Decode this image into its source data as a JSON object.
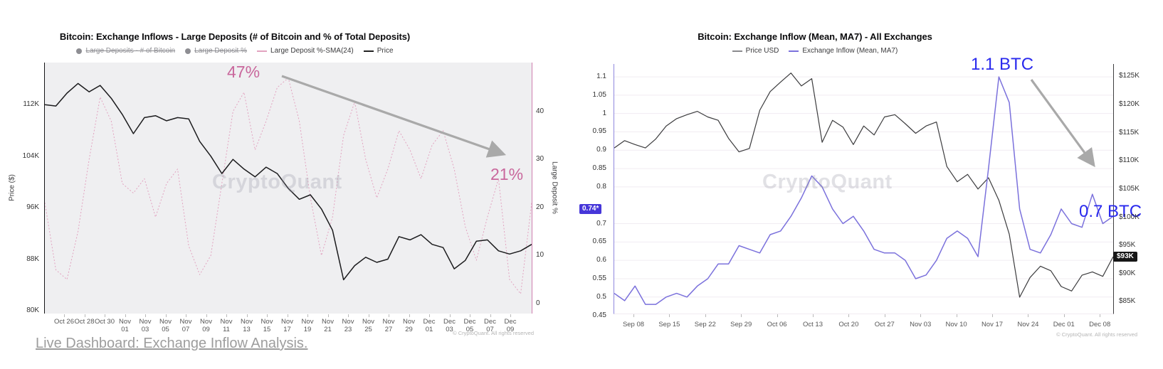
{
  "watermark": "CryptoQuant",
  "copyright": "© CryptoQuant. All rights reserved",
  "footer_link": "Live Dashboard: Exchange Inflow Analysis.",
  "chart_data": [
    {
      "type": "line",
      "title": "Bitcoin: Exchange Inflows - Large Deposits (# of Bitcoin and % of Total Deposits)",
      "legend": [
        {
          "label": "Large Deposits - # of Bitcoin",
          "marker": "dot",
          "color": "#8e8e93",
          "disabled": true
        },
        {
          "label": "Large Deposit %",
          "marker": "dot",
          "color": "#8e8e93",
          "disabled": true
        },
        {
          "label": "Large Deposit %-SMA(24)",
          "marker": "line",
          "color": "#e2a3c0",
          "disabled": false
        },
        {
          "label": "Price",
          "marker": "line",
          "color": "#222222",
          "disabled": false
        }
      ],
      "grid": false,
      "x_ticks": [
        "Oct 26",
        "Oct 28",
        "Oct 30",
        "Nov\n01",
        "Nov\n03",
        "Nov\n05",
        "Nov\n07",
        "Nov\n09",
        "Nov\n11",
        "Nov\n13",
        "Nov\n15",
        "Nov\n17",
        "Nov\n19",
        "Nov\n21",
        "Nov\n23",
        "Nov\n25",
        "Nov\n27",
        "Nov\n29",
        "Dec\n01",
        "Dec\n03",
        "Dec\n05",
        "Dec\n07",
        "Dec\n09"
      ],
      "axes": {
        "left": {
          "title": "Price ($)",
          "vmin": 79.55,
          "vmax": 118.55,
          "ticks": [
            {
              "v": 112,
              "label": "112K"
            },
            {
              "v": 104,
              "label": "104K"
            },
            {
              "v": 96,
              "label": "96K"
            },
            {
              "v": 88,
              "label": "88K"
            },
            {
              "v": 80,
              "label": "80K"
            }
          ]
        },
        "right": {
          "title": "Large Deposit %",
          "vmin": -2.1,
          "vmax": 50.2,
          "ticks": [
            {
              "v": 40,
              "label": "40"
            },
            {
              "v": 30,
              "label": "30"
            },
            {
              "v": 20,
              "label": "20"
            },
            {
              "v": 10,
              "label": "10"
            },
            {
              "v": 0,
              "label": "0"
            }
          ]
        }
      },
      "series": [
        {
          "name": "Large Deposit %-SMA(24)",
          "axis": "right",
          "color": "#e2a3c0",
          "width": 1,
          "dash": "2 2.5",
          "values": [
            21,
            7,
            5,
            15,
            30,
            43,
            38,
            25,
            23,
            26,
            18,
            25,
            28,
            12,
            6,
            10,
            25,
            40,
            44,
            32,
            38,
            45,
            47,
            38,
            22,
            10,
            18,
            35,
            42,
            30,
            22,
            28,
            36,
            32,
            26,
            33,
            36,
            28,
            16,
            9,
            18,
            26,
            5,
            2,
            21
          ]
        },
        {
          "name": "Price",
          "axis": "left",
          "color": "#1b1b1d",
          "width": 1.5,
          "values": [
            112.0,
            111.8,
            113.8,
            115.3,
            114.0,
            115.0,
            113.0,
            110.5,
            107.5,
            110.0,
            110.3,
            109.5,
            110.0,
            109.8,
            106.3,
            104.0,
            101.3,
            103.5,
            102.0,
            100.8,
            102.3,
            101.3,
            99.0,
            97.3,
            98.0,
            95.8,
            92.5,
            84.8,
            87.0,
            88.3,
            87.5,
            88.0,
            91.5,
            91.0,
            91.8,
            90.3,
            89.8,
            86.5,
            87.8,
            90.8,
            91.0,
            89.3,
            88.8,
            89.3,
            90.3
          ]
        }
      ],
      "annotations": [
        {
          "text": "47%"
        },
        {
          "text": "21%"
        }
      ]
    },
    {
      "type": "line",
      "title": "Bitcoin: Exchange Inflow (Mean, MA7) - All Exchanges",
      "legend": [
        {
          "label": "Price USD",
          "marker": "line",
          "color": "#8a8a8e",
          "disabled": false
        },
        {
          "label": "Exchange Inflow (Mean, MA7)",
          "marker": "line",
          "color": "#7b71dc",
          "disabled": false
        }
      ],
      "grid": true,
      "x_ticks": [
        "Sep 08",
        "Sep 15",
        "Sep 22",
        "Sep 29",
        "Oct 06",
        "Oct 13",
        "Oct 20",
        "Oct 27",
        "Nov 03",
        "Nov 10",
        "Nov 17",
        "Nov 24",
        "Dec 01",
        "Dec 08"
      ],
      "axes": {
        "left": {
          "title": "",
          "vmin": 0.455,
          "vmax": 1.135,
          "ticks": [
            {
              "v": 1.1,
              "label": "1.1"
            },
            {
              "v": 1.05,
              "label": "1.05"
            },
            {
              "v": 1.0,
              "label": "1"
            },
            {
              "v": 0.95,
              "label": "0.95"
            },
            {
              "v": 0.9,
              "label": "0.9"
            },
            {
              "v": 0.85,
              "label": "0.85"
            },
            {
              "v": 0.8,
              "label": "0.8"
            },
            {
              "v": 0.74,
              "label": "0.74*",
              "badge": "blue"
            },
            {
              "v": 0.7,
              "label": "0.7"
            },
            {
              "v": 0.65,
              "label": "0.65"
            },
            {
              "v": 0.6,
              "label": "0.6"
            },
            {
              "v": 0.55,
              "label": "0.55"
            },
            {
              "v": 0.5,
              "label": "0.5"
            },
            {
              "v": 0.45,
              "label": "0.45"
            }
          ]
        },
        "right": {
          "title": "",
          "vmin": 82.9,
          "vmax": 127.2,
          "ticks": [
            {
              "v": 125,
              "label": "$125K"
            },
            {
              "v": 120,
              "label": "$120K"
            },
            {
              "v": 115,
              "label": "$115K"
            },
            {
              "v": 110,
              "label": "$110K"
            },
            {
              "v": 105,
              "label": "$105K"
            },
            {
              "v": 100,
              "label": "$100K"
            },
            {
              "v": 95,
              "label": "$95K"
            },
            {
              "v": 93,
              "label": "$93K",
              "badge": "black"
            },
            {
              "v": 90,
              "label": "$90K"
            },
            {
              "v": 85,
              "label": "$85K"
            }
          ]
        }
      },
      "series": [
        {
          "name": "Price USD",
          "axis": "right",
          "color": "#3c3c3e",
          "width": 1.2,
          "values": [
            112.3,
            113.6,
            112.9,
            112.3,
            113.9,
            116.2,
            117.5,
            118.2,
            118.8,
            117.8,
            117.2,
            114.0,
            111.6,
            112.2,
            119.0,
            122.3,
            124.0,
            125.6,
            123.3,
            124.6,
            113.3,
            117.2,
            116.0,
            112.9,
            116.2,
            114.6,
            117.8,
            118.2,
            116.6,
            114.9,
            116.2,
            116.9,
            109.0,
            106.3,
            107.6,
            105.0,
            107.0,
            103.0,
            97.0,
            85.8,
            89.3,
            91.3,
            90.5,
            87.7,
            86.9,
            89.7,
            90.3,
            89.5,
            93.0
          ]
        },
        {
          "name": "Exchange Inflow (Mean, MA7)",
          "axis": "left",
          "color": "#7b71dc",
          "width": 1.5,
          "values": [
            0.51,
            0.49,
            0.53,
            0.48,
            0.48,
            0.5,
            0.51,
            0.5,
            0.53,
            0.55,
            0.59,
            0.59,
            0.64,
            0.63,
            0.62,
            0.67,
            0.68,
            0.72,
            0.77,
            0.83,
            0.8,
            0.74,
            0.7,
            0.72,
            0.68,
            0.63,
            0.62,
            0.62,
            0.6,
            0.55,
            0.56,
            0.6,
            0.66,
            0.68,
            0.66,
            0.61,
            0.85,
            1.1,
            1.03,
            0.74,
            0.63,
            0.62,
            0.67,
            0.74,
            0.7,
            0.69,
            0.78,
            0.7,
            0.72
          ]
        }
      ],
      "annotations": [
        {
          "text": "1.1 BTC"
        },
        {
          "text": "0.7 BTC"
        }
      ]
    }
  ]
}
